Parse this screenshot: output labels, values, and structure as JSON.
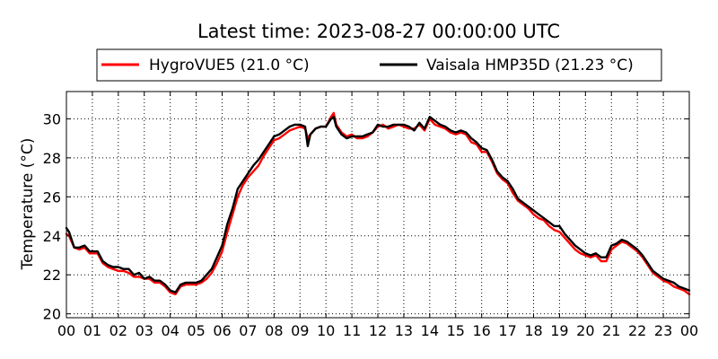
{
  "chart_data": {
    "type": "line",
    "title": "Latest time: 2023-08-27 00:00:00 UTC",
    "xlabel": "",
    "ylabel": "Temperature (°C)",
    "xlim": [
      0,
      24
    ],
    "ylim": [
      19.8,
      31.4
    ],
    "grid": true,
    "legend_position": "top-center",
    "x_ticks": [
      {
        "value": 0,
        "label": "00"
      },
      {
        "value": 1,
        "label": "01"
      },
      {
        "value": 2,
        "label": "02"
      },
      {
        "value": 3,
        "label": "03"
      },
      {
        "value": 4,
        "label": "04"
      },
      {
        "value": 5,
        "label": "05"
      },
      {
        "value": 6,
        "label": "06"
      },
      {
        "value": 7,
        "label": "07"
      },
      {
        "value": 8,
        "label": "08"
      },
      {
        "value": 9,
        "label": "09"
      },
      {
        "value": 10,
        "label": "10"
      },
      {
        "value": 11,
        "label": "11"
      },
      {
        "value": 12,
        "label": "12"
      },
      {
        "value": 13,
        "label": "13"
      },
      {
        "value": 14,
        "label": "14"
      },
      {
        "value": 15,
        "label": "15"
      },
      {
        "value": 16,
        "label": "16"
      },
      {
        "value": 17,
        "label": "17"
      },
      {
        "value": 18,
        "label": "18"
      },
      {
        "value": 19,
        "label": "19"
      },
      {
        "value": 20,
        "label": "20"
      },
      {
        "value": 21,
        "label": "21"
      },
      {
        "value": 22,
        "label": "22"
      },
      {
        "value": 23,
        "label": "23"
      },
      {
        "value": 24,
        "label": "00"
      }
    ],
    "y_ticks": [
      {
        "value": 20,
        "label": "20"
      },
      {
        "value": 22,
        "label": "22"
      },
      {
        "value": 24,
        "label": "24"
      },
      {
        "value": 26,
        "label": "26"
      },
      {
        "value": 28,
        "label": "28"
      },
      {
        "value": 30,
        "label": "30"
      }
    ],
    "series": [
      {
        "name": "HygroVUE5 (21.0 °C)",
        "color": "#ff0000",
        "x": [
          0,
          0.1,
          0.3,
          0.5,
          0.7,
          0.9,
          1.0,
          1.2,
          1.4,
          1.6,
          1.8,
          2.0,
          2.2,
          2.4,
          2.6,
          2.8,
          3.0,
          3.2,
          3.4,
          3.6,
          3.8,
          4.0,
          4.2,
          4.4,
          4.6,
          4.8,
          5.0,
          5.2,
          5.4,
          5.6,
          5.8,
          6.0,
          6.2,
          6.4,
          6.6,
          6.8,
          7.0,
          7.2,
          7.4,
          7.6,
          7.8,
          8.0,
          8.2,
          8.4,
          8.6,
          8.8,
          9.0,
          9.2,
          9.3,
          9.4,
          9.6,
          9.8,
          10.0,
          10.2,
          10.3,
          10.4,
          10.6,
          10.8,
          11.0,
          11.2,
          11.4,
          11.6,
          11.8,
          12.0,
          12.2,
          12.4,
          12.6,
          12.8,
          13.0,
          13.2,
          13.4,
          13.6,
          13.8,
          14.0,
          14.2,
          14.4,
          14.6,
          14.8,
          15.0,
          15.2,
          15.4,
          15.6,
          15.8,
          16.0,
          16.2,
          16.4,
          16.6,
          16.8,
          17.0,
          17.2,
          17.4,
          17.6,
          17.8,
          18.0,
          18.2,
          18.4,
          18.6,
          18.8,
          19.0,
          19.2,
          19.4,
          19.6,
          19.8,
          20.0,
          20.2,
          20.4,
          20.6,
          20.8,
          21.0,
          21.2,
          21.4,
          21.6,
          21.8,
          22.0,
          22.2,
          22.4,
          22.6,
          22.8,
          23.0,
          23.2,
          23.4,
          23.6,
          23.8,
          24.0
        ],
        "values": [
          24.1,
          24.0,
          23.4,
          23.3,
          23.4,
          23.1,
          23.1,
          23.1,
          22.6,
          22.4,
          22.3,
          22.2,
          22.2,
          22.1,
          21.9,
          21.9,
          21.8,
          21.8,
          21.6,
          21.6,
          21.4,
          21.1,
          21.0,
          21.4,
          21.5,
          21.5,
          21.5,
          21.6,
          21.8,
          22.1,
          22.6,
          23.2,
          24.2,
          25.1,
          26.0,
          26.6,
          27.0,
          27.3,
          27.6,
          28.1,
          28.5,
          28.9,
          29.0,
          29.2,
          29.4,
          29.5,
          29.6,
          29.5,
          29.0,
          29.2,
          29.5,
          29.6,
          29.6,
          30.1,
          30.3,
          29.7,
          29.3,
          29.1,
          29.2,
          29.0,
          29.0,
          29.1,
          29.3,
          29.6,
          29.7,
          29.5,
          29.6,
          29.7,
          29.6,
          29.5,
          29.5,
          29.7,
          29.4,
          30.0,
          29.7,
          29.6,
          29.5,
          29.3,
          29.2,
          29.3,
          29.2,
          28.8,
          28.7,
          28.3,
          28.3,
          27.8,
          27.2,
          26.9,
          26.7,
          26.2,
          25.8,
          25.6,
          25.4,
          25.1,
          24.9,
          24.8,
          24.5,
          24.3,
          24.2,
          23.9,
          23.6,
          23.3,
          23.1,
          23.0,
          22.9,
          23.0,
          22.7,
          22.7,
          23.3,
          23.5,
          23.7,
          23.6,
          23.4,
          23.2,
          22.9,
          22.5,
          22.1,
          21.9,
          21.7,
          21.6,
          21.4,
          21.3,
          21.2,
          21.0
        ]
      },
      {
        "name": "Vaisala HMP35D (21.23 °C)",
        "color": "#000000",
        "x": [
          0,
          0.1,
          0.3,
          0.5,
          0.7,
          0.9,
          1.0,
          1.2,
          1.4,
          1.6,
          1.8,
          2.0,
          2.2,
          2.4,
          2.6,
          2.8,
          3.0,
          3.2,
          3.4,
          3.6,
          3.8,
          4.0,
          4.2,
          4.4,
          4.6,
          4.8,
          5.0,
          5.2,
          5.4,
          5.6,
          5.8,
          6.0,
          6.2,
          6.4,
          6.6,
          6.8,
          7.0,
          7.2,
          7.4,
          7.6,
          7.8,
          8.0,
          8.2,
          8.4,
          8.6,
          8.8,
          9.0,
          9.2,
          9.3,
          9.4,
          9.6,
          9.8,
          10.0,
          10.2,
          10.3,
          10.4,
          10.6,
          10.8,
          11.0,
          11.2,
          11.4,
          11.6,
          11.8,
          12.0,
          12.2,
          12.4,
          12.6,
          12.8,
          13.0,
          13.2,
          13.4,
          13.6,
          13.8,
          14.0,
          14.2,
          14.4,
          14.6,
          14.8,
          15.0,
          15.2,
          15.4,
          15.6,
          15.8,
          16.0,
          16.2,
          16.4,
          16.6,
          16.8,
          17.0,
          17.2,
          17.4,
          17.6,
          17.8,
          18.0,
          18.2,
          18.4,
          18.6,
          18.8,
          19.0,
          19.2,
          19.4,
          19.6,
          19.8,
          20.0,
          20.2,
          20.4,
          20.6,
          20.8,
          21.0,
          21.2,
          21.4,
          21.6,
          21.8,
          22.0,
          22.2,
          22.4,
          22.6,
          22.8,
          23.0,
          23.2,
          23.4,
          23.6,
          23.8,
          24.0
        ],
        "values": [
          24.4,
          24.2,
          23.4,
          23.4,
          23.5,
          23.2,
          23.2,
          23.2,
          22.7,
          22.5,
          22.4,
          22.4,
          22.3,
          22.3,
          22.0,
          22.1,
          21.8,
          21.9,
          21.7,
          21.7,
          21.5,
          21.2,
          21.1,
          21.5,
          21.6,
          21.6,
          21.6,
          21.7,
          22.0,
          22.3,
          22.9,
          23.5,
          24.6,
          25.4,
          26.4,
          26.8,
          27.2,
          27.6,
          27.9,
          28.3,
          28.7,
          29.1,
          29.2,
          29.4,
          29.6,
          29.7,
          29.7,
          29.6,
          28.6,
          29.2,
          29.5,
          29.6,
          29.6,
          30.0,
          30.1,
          29.6,
          29.2,
          29.0,
          29.1,
          29.1,
          29.1,
          29.2,
          29.3,
          29.7,
          29.6,
          29.6,
          29.7,
          29.7,
          29.7,
          29.6,
          29.4,
          29.8,
          29.5,
          30.1,
          29.9,
          29.7,
          29.6,
          29.4,
          29.3,
          29.4,
          29.3,
          29.0,
          28.8,
          28.5,
          28.4,
          27.9,
          27.3,
          27.0,
          26.8,
          26.4,
          25.9,
          25.7,
          25.5,
          25.3,
          25.1,
          24.9,
          24.7,
          24.5,
          24.5,
          24.1,
          23.8,
          23.5,
          23.3,
          23.1,
          23.0,
          23.1,
          22.9,
          22.9,
          23.5,
          23.6,
          23.8,
          23.7,
          23.5,
          23.3,
          23.0,
          22.6,
          22.2,
          22.0,
          21.8,
          21.7,
          21.6,
          21.4,
          21.3,
          21.2
        ]
      }
    ]
  }
}
